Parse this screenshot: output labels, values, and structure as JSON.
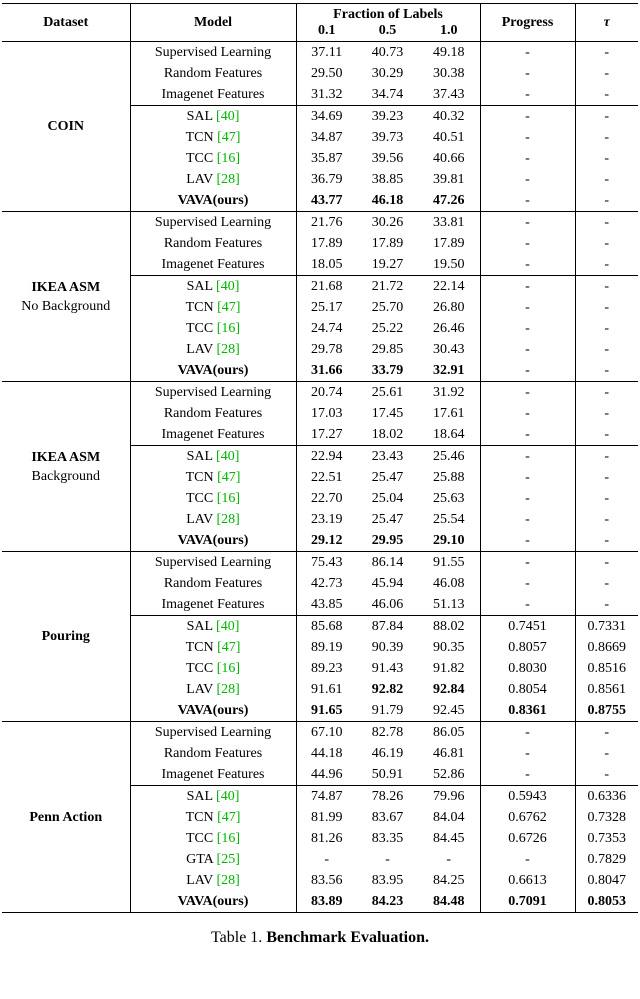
{
  "table": {
    "citation_color": "#00b400",
    "header": {
      "dataset": "Dataset",
      "model": "Model",
      "fraction_group": "Fraction of Labels",
      "fractions": [
        "0.1",
        "0.5",
        "1.0"
      ],
      "progress": "Progress",
      "tau": "τ"
    },
    "sections": [
      {
        "dataset_lines": [
          {
            "text": "COIN",
            "bold": true
          }
        ],
        "rows": [
          {
            "model": "Supervised Learning",
            "values": [
              "37.11",
              "40.73",
              "49.18",
              "-",
              "-"
            ]
          },
          {
            "model": "Random Features",
            "values": [
              "29.50",
              "30.29",
              "30.38",
              "-",
              "-"
            ]
          },
          {
            "model": "Imagenet Features",
            "values": [
              "31.32",
              "34.74",
              "37.43",
              "-",
              "-"
            ],
            "rule_after": true
          },
          {
            "model": "SAL",
            "cite": "[40]",
            "values": [
              "34.69",
              "39.23",
              "40.32",
              "-",
              "-"
            ]
          },
          {
            "model": "TCN",
            "cite": "[47]",
            "values": [
              "34.87",
              "39.73",
              "40.51",
              "-",
              "-"
            ]
          },
          {
            "model": "TCC",
            "cite": "[16]",
            "values": [
              "35.87",
              "39.56",
              "40.66",
              "-",
              "-"
            ]
          },
          {
            "model": "LAV",
            "cite": "[28]",
            "values": [
              "36.79",
              "38.85",
              "39.81",
              "-",
              "-"
            ]
          },
          {
            "model": "VAVA(ours)",
            "model_bold": true,
            "values": [
              "43.77",
              "46.18",
              "47.26",
              "-",
              "-"
            ],
            "bold": [
              0,
              1,
              2
            ]
          }
        ]
      },
      {
        "dataset_lines": [
          {
            "text": "IKEA ASM",
            "bold": true
          },
          {
            "text": "No Background",
            "bold": false
          }
        ],
        "rows": [
          {
            "model": "Supervised Learning",
            "values": [
              "21.76",
              "30.26",
              "33.81",
              "-",
              "-"
            ]
          },
          {
            "model": "Random Features",
            "values": [
              "17.89",
              "17.89",
              "17.89",
              "-",
              "-"
            ]
          },
          {
            "model": "Imagenet Features",
            "values": [
              "18.05",
              "19.27",
              "19.50",
              "-",
              "-"
            ],
            "rule_after": true
          },
          {
            "model": "SAL",
            "cite": "[40]",
            "values": [
              "21.68",
              "21.72",
              "22.14",
              "-",
              "-"
            ]
          },
          {
            "model": "TCN",
            "cite": "[47]",
            "values": [
              "25.17",
              "25.70",
              "26.80",
              "-",
              "-"
            ]
          },
          {
            "model": "TCC",
            "cite": "[16]",
            "values": [
              "24.74",
              "25.22",
              "26.46",
              "-",
              "-"
            ]
          },
          {
            "model": "LAV",
            "cite": "[28]",
            "values": [
              "29.78",
              "29.85",
              "30.43",
              "-",
              "-"
            ]
          },
          {
            "model": "VAVA(ours)",
            "model_bold": true,
            "values": [
              "31.66",
              "33.79",
              "32.91",
              "-",
              "-"
            ],
            "bold": [
              0,
              1,
              2
            ]
          }
        ]
      },
      {
        "dataset_lines": [
          {
            "text": "IKEA ASM",
            "bold": true
          },
          {
            "text": "Background",
            "bold": false
          }
        ],
        "rows": [
          {
            "model": "Supervised Learning",
            "values": [
              "20.74",
              "25.61",
              "31.92",
              "-",
              "-"
            ]
          },
          {
            "model": "Random Features",
            "values": [
              "17.03",
              "17.45",
              "17.61",
              "-",
              "-"
            ]
          },
          {
            "model": "Imagenet Features",
            "values": [
              "17.27",
              "18.02",
              "18.64",
              "-",
              "-"
            ],
            "rule_after": true
          },
          {
            "model": "SAL",
            "cite": "[40]",
            "values": [
              "22.94",
              "23.43",
              "25.46",
              "-",
              "-"
            ]
          },
          {
            "model": "TCN",
            "cite": "[47]",
            "values": [
              "22.51",
              "25.47",
              "25.88",
              "-",
              "-"
            ]
          },
          {
            "model": "TCC",
            "cite": "[16]",
            "values": [
              "22.70",
              "25.04",
              "25.63",
              "-",
              "-"
            ]
          },
          {
            "model": "LAV",
            "cite": "[28]",
            "values": [
              "23.19",
              "25.47",
              "25.54",
              "-",
              "-"
            ]
          },
          {
            "model": "VAVA(ours)",
            "model_bold": true,
            "values": [
              "29.12",
              "29.95",
              "29.10",
              "-",
              "-"
            ],
            "bold": [
              0,
              1,
              2
            ]
          }
        ]
      },
      {
        "dataset_lines": [
          {
            "text": "Pouring",
            "bold": true
          }
        ],
        "rows": [
          {
            "model": "Supervised Learning",
            "values": [
              "75.43",
              "86.14",
              "91.55",
              "-",
              "-"
            ]
          },
          {
            "model": "Random Features",
            "values": [
              "42.73",
              "45.94",
              "46.08",
              "-",
              "-"
            ]
          },
          {
            "model": "Imagenet Features",
            "values": [
              "43.85",
              "46.06",
              "51.13",
              "-",
              "-"
            ],
            "rule_after": true
          },
          {
            "model": "SAL",
            "cite": "[40]",
            "values": [
              "85.68",
              "87.84",
              "88.02",
              "0.7451",
              "0.7331"
            ]
          },
          {
            "model": "TCN",
            "cite": "[47]",
            "values": [
              "89.19",
              "90.39",
              "90.35",
              "0.8057",
              "0.8669"
            ]
          },
          {
            "model": "TCC",
            "cite": "[16]",
            "values": [
              "89.23",
              "91.43",
              "91.82",
              "0.8030",
              "0.8516"
            ]
          },
          {
            "model": "LAV",
            "cite": "[28]",
            "values": [
              "91.61",
              "92.82",
              "92.84",
              "0.8054",
              "0.8561"
            ],
            "bold": [
              1,
              2
            ]
          },
          {
            "model": "VAVA(ours)",
            "model_bold": true,
            "values": [
              "91.65",
              "91.79",
              "92.45",
              "0.8361",
              "0.8755"
            ],
            "bold": [
              0,
              3,
              4
            ]
          }
        ]
      },
      {
        "dataset_lines": [
          {
            "text": "Penn Action",
            "bold": true
          }
        ],
        "rows": [
          {
            "model": "Supervised Learning",
            "values": [
              "67.10",
              "82.78",
              "86.05",
              "-",
              "-"
            ]
          },
          {
            "model": "Random Features",
            "values": [
              "44.18",
              "46.19",
              "46.81",
              "-",
              "-"
            ]
          },
          {
            "model": "Imagenet Features",
            "values": [
              "44.96",
              "50.91",
              "52.86",
              "-",
              "-"
            ],
            "rule_after": true
          },
          {
            "model": "SAL",
            "cite": "[40]",
            "values": [
              "74.87",
              "78.26",
              "79.96",
              "0.5943",
              "0.6336"
            ]
          },
          {
            "model": "TCN",
            "cite": "[47]",
            "values": [
              "81.99",
              "83.67",
              "84.04",
              "0.6762",
              "0.7328"
            ]
          },
          {
            "model": "TCC",
            "cite": "[16]",
            "values": [
              "81.26",
              "83.35",
              "84.45",
              "0.6726",
              "0.7353"
            ]
          },
          {
            "model": "GTA",
            "cite": "[25]",
            "values": [
              "-",
              "-",
              "-",
              "-",
              "0.7829"
            ]
          },
          {
            "model": "LAV",
            "cite": "[28]",
            "values": [
              "83.56",
              "83.95",
              "84.25",
              "0.6613",
              "0.8047"
            ]
          },
          {
            "model": "VAVA(ours)",
            "model_bold": true,
            "values": [
              "83.89",
              "84.23",
              "84.48",
              "0.7091",
              "0.8053"
            ],
            "bold": [
              0,
              1,
              2,
              3,
              4
            ]
          }
        ]
      }
    ],
    "caption": {
      "label": "Table 1.",
      "text": "Benchmark Evaluation."
    }
  }
}
